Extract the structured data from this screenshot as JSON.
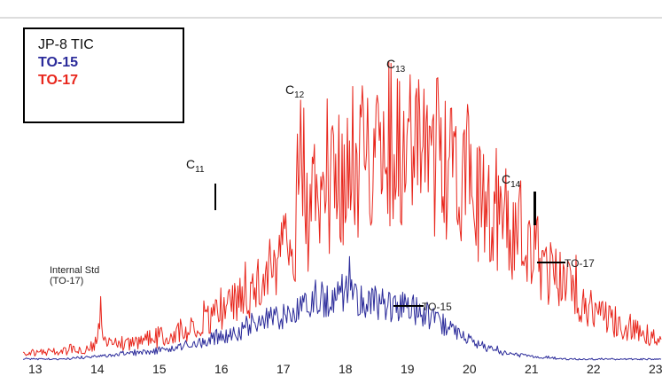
{
  "chart_data": {
    "type": "line",
    "legend": {
      "title": "JP-8 TIC",
      "entries": [
        {
          "name": "TO-15",
          "color": "#2b2b9a"
        },
        {
          "name": "TO-17",
          "color": "#e8261c"
        }
      ]
    },
    "xlim": [
      12.8,
      23.1
    ],
    "ylim": [
      0,
      100
    ],
    "x_ticks": [
      "13",
      "14",
      "15",
      "16",
      "17",
      "18",
      "19",
      "20",
      "21",
      "22",
      "23"
    ],
    "peak_labels": [
      {
        "text": "C",
        "sub": "11",
        "x": 15.9,
        "y": 64
      },
      {
        "text": "C",
        "sub": "12",
        "x": 17.25,
        "y": 97
      },
      {
        "text": "C",
        "sub": "13",
        "x": 19.05,
        "y": 79
      },
      {
        "text": "C",
        "sub": "14",
        "x": 21.05,
        "y": 47
      }
    ],
    "annotations": {
      "internal_std_line1": "Internal Std",
      "internal_std_line2": "(TO-17)",
      "to17_marker": "TO-17",
      "to15_marker": "TO-15"
    },
    "series": [
      {
        "name": "TO-17",
        "color": "#e8261c",
        "x": [
          12.8,
          13.3,
          13.8,
          14.0,
          14.05,
          14.1,
          14.5,
          15.0,
          15.5,
          16.0,
          16.5,
          16.9,
          17.0,
          17.2,
          17.3,
          17.35,
          17.5,
          17.8,
          18.0,
          18.2,
          18.5,
          18.8,
          19.0,
          19.2,
          19.5,
          19.8,
          20.0,
          20.3,
          20.6,
          20.9,
          21.1,
          21.2,
          21.4,
          21.6,
          21.8,
          22.0,
          22.3,
          22.6,
          22.9,
          23.1
        ],
        "y": [
          3,
          4,
          5,
          7,
          24,
          7,
          7,
          9,
          13,
          20,
          28,
          38,
          45,
          52,
          96,
          55,
          62,
          70,
          75,
          79,
          80,
          82,
          85,
          80,
          78,
          72,
          66,
          60,
          52,
          46,
          41,
          35,
          30,
          30,
          25,
          20,
          16,
          13,
          10,
          9
        ]
      },
      {
        "name": "TO-15",
        "color": "#2b2b9a",
        "x": [
          12.8,
          13.5,
          14.0,
          14.5,
          15.0,
          15.5,
          16.0,
          16.5,
          17.0,
          17.5,
          17.8,
          18.0,
          18.05,
          18.2,
          18.5,
          18.8,
          19.0,
          19.2,
          19.5,
          19.8,
          20.0,
          20.3,
          20.6,
          21.0,
          21.5,
          22.0,
          22.5,
          23.1
        ],
        "y": [
          1,
          1,
          2,
          3,
          4,
          6,
          9,
          13,
          17,
          21,
          23,
          24,
          32,
          24,
          22,
          20,
          21,
          18,
          15,
          11,
          8,
          5,
          3,
          2,
          1,
          1,
          1,
          1
        ]
      }
    ]
  }
}
